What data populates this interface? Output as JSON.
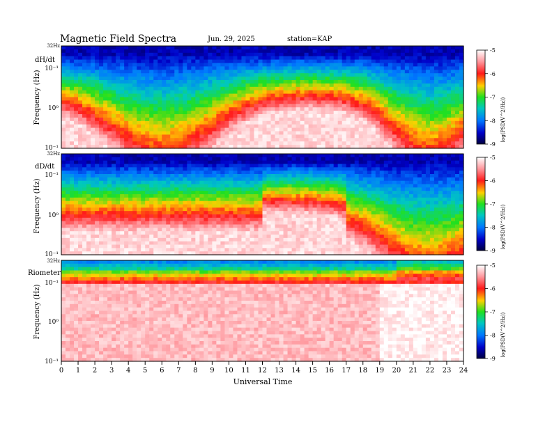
{
  "header": {
    "title": "Magnetic  Field  Spectra",
    "date": "Jun. 29, 2025",
    "station": "station=KAP"
  },
  "chart_data": [
    {
      "type": "heatmap",
      "panel_label": "dH/dt",
      "ylabel": "Frequency  (Hz)",
      "top_label": "32Hz",
      "y_ticks": [
        "10⁻¹",
        "10⁰",
        "10⁻¹"
      ],
      "colorbar_label": "log(PSD(V^2/Hz))",
      "colorbar_ticks": [
        "-5",
        "-6",
        "-7",
        "-8",
        "-9"
      ],
      "clim": [
        -9,
        -5
      ],
      "disturbance": "diurnal"
    },
    {
      "type": "heatmap",
      "panel_label": "dD/dt",
      "ylabel": "Frequency  (Hz)",
      "top_label": "32Hz",
      "y_ticks": [
        "10⁻¹",
        "10⁰",
        "10⁻¹"
      ],
      "colorbar_label": "log(PSD(V^2/Hz))",
      "colorbar_ticks": [
        "-5",
        "-6",
        "-7",
        "-8",
        "-9"
      ],
      "clim": [
        -9,
        -5
      ],
      "disturbance": "late"
    },
    {
      "type": "heatmap",
      "panel_label": "Riometer",
      "ylabel": "Frequency  (Hz)",
      "top_label": "32Hz",
      "y_ticks": [
        "10⁻¹",
        "10⁰",
        "10⁻¹"
      ],
      "colorbar_label": "log(PSD(V^2/Hz))",
      "colorbar_ticks": [
        "-5",
        "-6",
        "-7",
        "-8",
        "-9"
      ],
      "clim": [
        -9,
        -5
      ],
      "disturbance": "riometer"
    }
  ],
  "x_axis": {
    "xlabel": "Universal Time",
    "xlim": [
      0,
      24
    ],
    "ticks": [
      "0",
      "1",
      "2",
      "3",
      "4",
      "5",
      "6",
      "7",
      "8",
      "9",
      "10",
      "11",
      "12",
      "13",
      "14",
      "15",
      "16",
      "17",
      "18",
      "19",
      "20",
      "21",
      "22",
      "23",
      "24"
    ]
  }
}
